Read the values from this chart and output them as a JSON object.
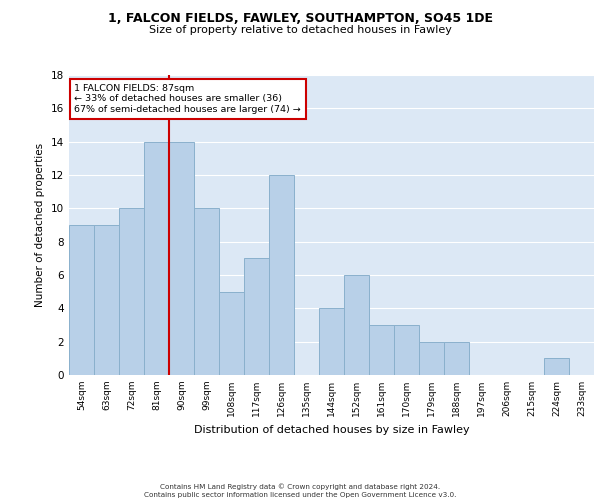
{
  "title_line1": "1, FALCON FIELDS, FAWLEY, SOUTHAMPTON, SO45 1DE",
  "title_line2": "Size of property relative to detached houses in Fawley",
  "xlabel": "Distribution of detached houses by size in Fawley",
  "ylabel": "Number of detached properties",
  "categories": [
    "54sqm",
    "63sqm",
    "72sqm",
    "81sqm",
    "90sqm",
    "99sqm",
    "108sqm",
    "117sqm",
    "126sqm",
    "135sqm",
    "144sqm",
    "152sqm",
    "161sqm",
    "170sqm",
    "179sqm",
    "188sqm",
    "197sqm",
    "206sqm",
    "215sqm",
    "224sqm",
    "233sqm"
  ],
  "values": [
    9,
    9,
    10,
    14,
    14,
    10,
    5,
    7,
    12,
    0,
    4,
    6,
    3,
    3,
    2,
    2,
    0,
    0,
    0,
    1,
    0
  ],
  "bar_color": "#b8d0e8",
  "bar_edge_color": "#8ab0cc",
  "background_color": "#dce8f5",
  "grid_color": "#ffffff",
  "vline_color": "#cc0000",
  "annotation_text": "1 FALCON FIELDS: 87sqm\n← 33% of detached houses are smaller (36)\n67% of semi-detached houses are larger (74) →",
  "annotation_box_color": "#ffffff",
  "annotation_box_edge": "#cc0000",
  "ylim": [
    0,
    18
  ],
  "yticks": [
    0,
    2,
    4,
    6,
    8,
    10,
    12,
    14,
    16,
    18
  ],
  "footer_line1": "Contains HM Land Registry data © Crown copyright and database right 2024.",
  "footer_line2": "Contains public sector information licensed under the Open Government Licence v3.0."
}
